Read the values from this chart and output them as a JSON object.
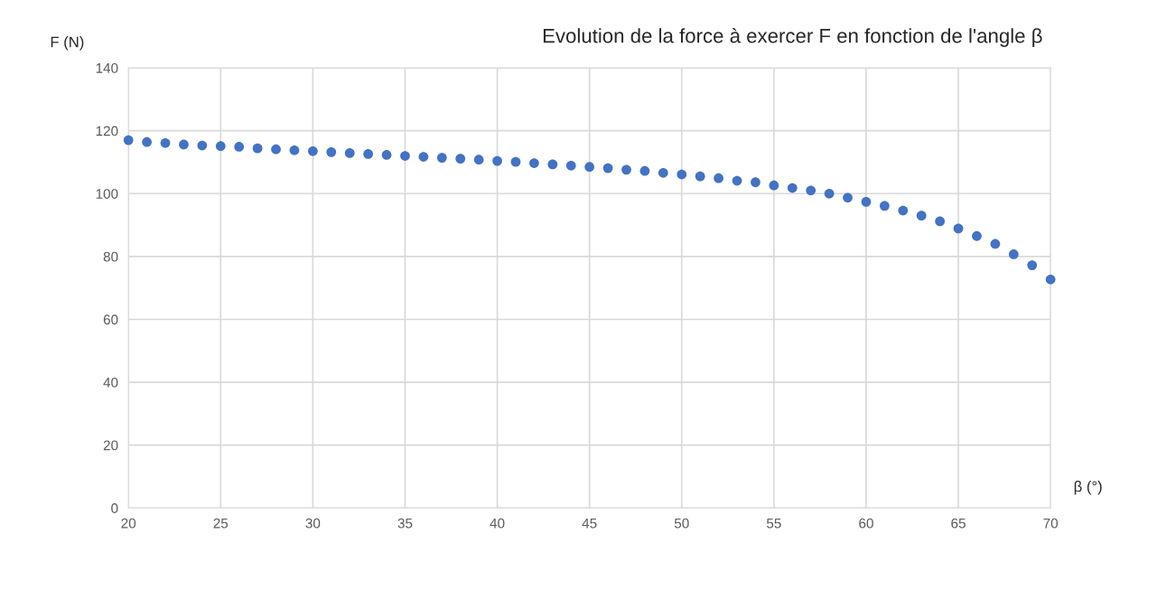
{
  "chart_data": {
    "type": "scatter",
    "title": "Evolution de la force à exercer F en fonction de l'angle β",
    "xlabel": "β (°)",
    "ylabel": "F (N)",
    "x": [
      20,
      21,
      22,
      23,
      24,
      25,
      26,
      27,
      28,
      29,
      30,
      31,
      32,
      33,
      34,
      35,
      36,
      37,
      38,
      39,
      40,
      41,
      42,
      43,
      44,
      45,
      46,
      47,
      48,
      49,
      50,
      51,
      52,
      53,
      54,
      55,
      56,
      57,
      58,
      59,
      60,
      61,
      62,
      63,
      64,
      65,
      66,
      67,
      68,
      69,
      70
    ],
    "series": [
      {
        "color": "#4472c4",
        "values": [
          117.0,
          116.4,
          116.1,
          115.6,
          115.3,
          115.1,
          114.9,
          114.4,
          114.1,
          113.8,
          113.5,
          113.2,
          112.9,
          112.6,
          112.3,
          112.0,
          111.7,
          111.4,
          111.1,
          110.8,
          110.4,
          110.1,
          109.7,
          109.3,
          108.9,
          108.5,
          108.1,
          107.6,
          107.2,
          106.6,
          106.1,
          105.5,
          104.9,
          104.1,
          103.6,
          102.6,
          101.8,
          101.0,
          100.0,
          98.7,
          97.4,
          96.1,
          94.6,
          93.0,
          91.2,
          88.9,
          86.5,
          84.0,
          80.7,
          77.2,
          72.7
        ]
      }
    ],
    "xlim": [
      20,
      70
    ],
    "xticks": [
      20,
      25,
      30,
      35,
      40,
      45,
      50,
      55,
      60,
      65,
      70
    ],
    "ylim": [
      0,
      140
    ],
    "yticks": [
      0,
      20,
      40,
      60,
      80,
      100,
      120,
      140
    ],
    "grid": true,
    "marker": "circle"
  }
}
